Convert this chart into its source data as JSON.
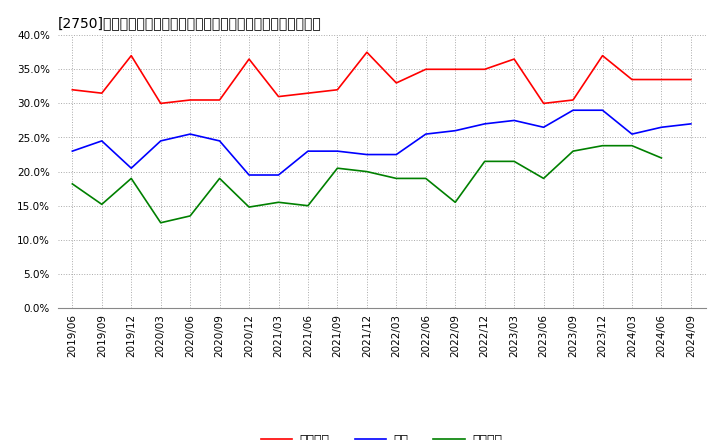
{
  "title": "[2750]　売上債権、在庫、買入債務の総資産に対する比率の推移",
  "x_labels": [
    "2019/06",
    "2019/09",
    "2019/12",
    "2020/03",
    "2020/06",
    "2020/09",
    "2020/12",
    "2021/03",
    "2021/06",
    "2021/09",
    "2021/12",
    "2022/03",
    "2022/06",
    "2022/09",
    "2022/12",
    "2023/03",
    "2023/06",
    "2023/09",
    "2023/12",
    "2024/03",
    "2024/06",
    "2024/09"
  ],
  "legend_labels": [
    "売上債権",
    "在庫",
    "買入債務"
  ],
  "series": {
    "売上債権": {
      "color": "#ff0000",
      "values": [
        0.32,
        0.315,
        0.37,
        0.3,
        0.305,
        0.305,
        0.365,
        0.31,
        0.315,
        0.32,
        0.375,
        0.33,
        0.35,
        0.35,
        0.35,
        0.365,
        0.3,
        0.305,
        0.37,
        0.335,
        0.335,
        0.335
      ]
    },
    "在庫": {
      "color": "#0000ff",
      "values": [
        0.23,
        0.245,
        0.205,
        0.245,
        0.255,
        0.245,
        0.195,
        0.195,
        0.23,
        0.23,
        0.225,
        0.225,
        0.255,
        0.26,
        0.27,
        0.275,
        0.265,
        0.29,
        0.29,
        0.255,
        0.265,
        0.27
      ]
    },
    "買入債務": {
      "color": "#008000",
      "values": [
        0.182,
        0.152,
        0.19,
        0.125,
        0.135,
        0.19,
        0.148,
        0.155,
        0.15,
        0.205,
        0.2,
        0.19,
        0.19,
        0.155,
        0.215,
        0.215,
        0.19,
        0.23,
        0.238,
        0.238,
        0.22,
        null
      ]
    }
  },
  "ylim": [
    0.0,
    0.4
  ],
  "yticks": [
    0.0,
    0.05,
    0.1,
    0.15,
    0.2,
    0.25,
    0.3,
    0.35,
    0.4
  ],
  "background_color": "#ffffff",
  "grid_color": "#aaaaaa",
  "title_fontsize": 10,
  "tick_fontsize": 7.5,
  "legend_fontsize": 9
}
